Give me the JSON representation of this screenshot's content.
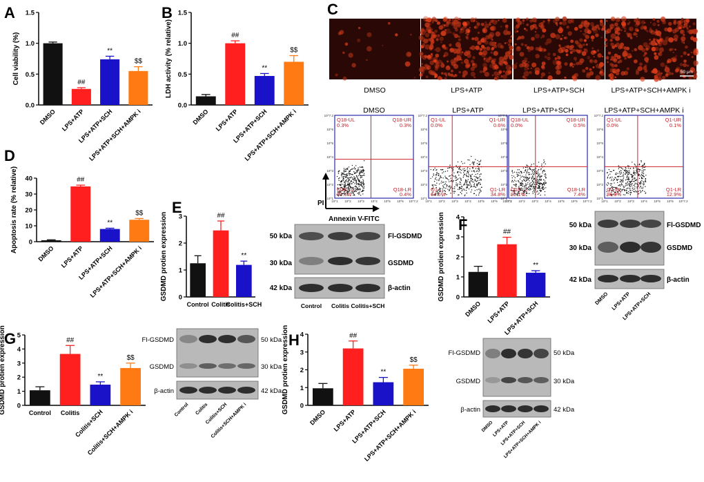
{
  "colors": {
    "black": "#111111",
    "red": "#ff1f1f",
    "blue": "#1a12c8",
    "orange": "#ff7a12",
    "quad_line": "#d0202a",
    "flow_frame": "#2a2aa8",
    "micro_bg": "#2a0805"
  },
  "panel_letters": {
    "A": "A",
    "B": "B",
    "C": "C",
    "D": "D",
    "E": "E",
    "F": "F",
    "G": "G",
    "H": "H"
  },
  "chart_data": [
    {
      "id": "A",
      "type": "bar",
      "ylabel": "Cell viability (%)",
      "yticks": [
        "0.0",
        "0.5",
        "1.0",
        "1.5"
      ],
      "ylim": [
        0,
        1.5
      ],
      "categories": [
        "DMSO",
        "LPS+ATP",
        "LPS+ATP+SCH",
        "LPS+ATP+SCH+AMPK i"
      ],
      "values": [
        1.0,
        0.26,
        0.74,
        0.55
      ],
      "errors": [
        0.02,
        0.02,
        0.05,
        0.07
      ],
      "colors": [
        "black",
        "red",
        "blue",
        "orange"
      ],
      "significance": [
        "",
        "##",
        "**",
        "$$"
      ]
    },
    {
      "id": "B",
      "type": "bar",
      "ylabel": "LDH activity (% relative)",
      "yticks": [
        "0.0",
        "0.5",
        "1.0",
        "1.5"
      ],
      "ylim": [
        0,
        1.5
      ],
      "categories": [
        "DMSO",
        "LPS+ATP",
        "LPS+ATP+SCH",
        "LPS+ATP+SCH+AMPK i"
      ],
      "values": [
        0.14,
        1.0,
        0.47,
        0.7
      ],
      "errors": [
        0.03,
        0.04,
        0.04,
        0.1
      ],
      "colors": [
        "black",
        "red",
        "blue",
        "orange"
      ],
      "significance": [
        "",
        "##",
        "**",
        "$$"
      ]
    },
    {
      "id": "D",
      "type": "bar",
      "ylabel": "Apoptosis rate (% relative)",
      "yticks": [
        "0",
        "10",
        "20",
        "30",
        "40"
      ],
      "ylim": [
        0,
        40
      ],
      "categories": [
        "DMSO",
        "LPS+ATP",
        "LPS+ATP+SCH",
        "LPS+ATP+SCH+AMPK i"
      ],
      "values": [
        0.9,
        34.8,
        8.0,
        13.8
      ],
      "errors": [
        0.3,
        0.8,
        0.5,
        0.8
      ],
      "colors": [
        "black",
        "red",
        "blue",
        "orange"
      ],
      "significance": [
        "",
        "##",
        "**",
        "$$"
      ]
    },
    {
      "id": "E",
      "type": "bar",
      "ylabel": "GSDMD protien expression",
      "yticks": [
        "0",
        "1",
        "2",
        "3"
      ],
      "ylim": [
        0,
        3
      ],
      "categories": [
        "Control",
        "Colitis",
        "Colitis+SCH"
      ],
      "values": [
        1.25,
        2.47,
        1.19
      ],
      "errors": [
        0.28,
        0.35,
        0.14
      ],
      "colors": [
        "black",
        "red",
        "blue"
      ],
      "significance": [
        "",
        "##",
        "**"
      ]
    },
    {
      "id": "F",
      "type": "bar",
      "ylabel": "GSDMD protien expression",
      "yticks": [
        "0",
        "1",
        "2",
        "3",
        "4"
      ],
      "ylim": [
        0,
        4
      ],
      "categories": [
        "DMSO",
        "LPS+ATP",
        "LPS+ATP+SCH"
      ],
      "values": [
        1.25,
        2.63,
        1.21
      ],
      "errors": [
        0.28,
        0.35,
        0.1
      ],
      "colors": [
        "black",
        "red",
        "blue"
      ],
      "significance": [
        "",
        "##",
        "**"
      ]
    },
    {
      "id": "G",
      "type": "bar",
      "ylabel": "GSDMD protien expression",
      "yticks": [
        "0",
        "1",
        "2",
        "3",
        "4",
        "5"
      ],
      "ylim": [
        0,
        5
      ],
      "categories": [
        "Control",
        "Colitis",
        "Colitis+SCH",
        "Colitis+SCH+AMPK i"
      ],
      "values": [
        1.07,
        3.65,
        1.47,
        2.65
      ],
      "errors": [
        0.25,
        0.6,
        0.2,
        0.35
      ],
      "colors": [
        "black",
        "red",
        "blue",
        "orange"
      ],
      "significance": [
        "",
        "##",
        "**",
        "$$"
      ]
    },
    {
      "id": "H",
      "type": "bar",
      "ylabel": "GSDMD protien expression",
      "yticks": [
        "0",
        "1",
        "2",
        "3",
        "4"
      ],
      "ylim": [
        0,
        4
      ],
      "categories": [
        "DMSO",
        "LPS+ATP",
        "LPS+ATP+SCH",
        "LPS+ATP+SCH+AMPK i"
      ],
      "values": [
        0.96,
        3.2,
        1.3,
        2.06
      ],
      "errors": [
        0.27,
        0.42,
        0.27,
        0.2
      ],
      "colors": [
        "black",
        "red",
        "blue",
        "orange"
      ],
      "significance": [
        "",
        "##",
        "**",
        "$$"
      ]
    }
  ],
  "micrographs": {
    "labels": [
      "DMSO",
      "LPS+ATP",
      "LPS+ATP+SCH",
      "LPS+ATP+SCH+AMPK i"
    ],
    "intensity": [
      0.05,
      0.85,
      0.55,
      0.65
    ],
    "scale_bar": "50 μm"
  },
  "flow": {
    "titles": [
      "DMSO",
      "LPS+ATP",
      "LPS+ATP+SCH",
      "LPS+ATP+SCH+AMPK i"
    ],
    "quadrants": [
      {
        "ul": "Q18-UL",
        "ul_v": "0.3%",
        "ur": "Q18-UR",
        "ur_v": "0.3%",
        "ll": "Q18-LL",
        "ll_v": "99.0%",
        "lr": "Q18-LR",
        "lr_v": "0.4%"
      },
      {
        "ul": "Q1-UL",
        "ul_v": "0.0%",
        "ur": "Q1-UR",
        "ur_v": "0.6%",
        "ll": "Q1-LL",
        "ll_v": "64.6%",
        "lr": "Q1-LR",
        "lr_v": "34.8%"
      },
      {
        "ul": "Q18-UL",
        "ul_v": "0.0%",
        "ur": "Q18-UR",
        "ur_v": "0.5%",
        "ll": "Q18-LL",
        "ll_v": "92.1%",
        "lr": "Q18-LR",
        "lr_v": "7.4%"
      },
      {
        "ul": "Q1-UL",
        "ul_v": "0.0%",
        "ur": "Q1-UR",
        "ur_v": "0.1%",
        "ll": "Q1-LL",
        "ll_v": "86.9%",
        "lr": "Q1-LR",
        "lr_v": "12.9%"
      }
    ],
    "axis_ticks": [
      "10^1",
      "10^2",
      "10^3",
      "10^4",
      "10^5",
      "10^6",
      "10^7.2"
    ],
    "y_axis_label": "PI",
    "x_axis_label": "Annexin V-FITC"
  },
  "blots": {
    "E": {
      "left_labels": [
        "50 kDa",
        "30 kDa",
        "42 kDa"
      ],
      "right_labels": [
        "Fl-GSDMD",
        "GSDMD",
        "β-actin"
      ],
      "lanes": [
        "Control",
        "Colitis",
        "Colitis+SCH"
      ]
    },
    "F": {
      "left_labels": [
        "50 kDa",
        "30 kDa",
        "42 kDa"
      ],
      "right_labels": [
        "Fl-GSDMD",
        "GSDMD",
        "β-actin"
      ],
      "lanes": [
        "DMSO",
        "LPS+ATP",
        "LPS+ATP+SCH"
      ]
    },
    "G": {
      "left_labels": [
        "Fl-GSDMD",
        "GSDMD",
        "β-actin"
      ],
      "right_labels": [
        "50 kDa",
        "30 kDa",
        "42 kDa"
      ],
      "lanes": [
        "Control",
        "Colitis",
        "Colitis+SCH",
        "Colitis+SCH+AMPK i"
      ]
    },
    "H": {
      "left_labels": [
        "Fl-GSDMD",
        "GSDMD",
        "β-actin"
      ],
      "right_labels": [
        "50 kDa",
        "30 kDa",
        "42 kDa"
      ],
      "lanes": [
        "DMSO",
        "LPS+ATP",
        "LPS+ATP+SCH",
        "LPS+ATP+SCH+AMPK i"
      ]
    }
  }
}
